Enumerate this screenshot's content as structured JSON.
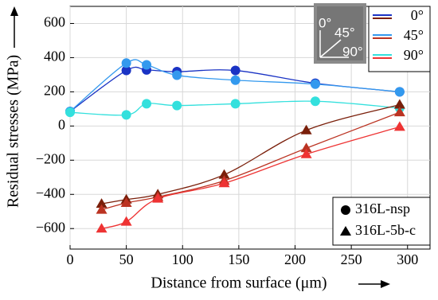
{
  "chart_data": {
    "type": "line",
    "x_label": "Distance from surface (μm)",
    "y_label": "Residual stresses (MPa)",
    "xlim": [
      0,
      320
    ],
    "ylim": [
      -720,
      700
    ],
    "xticks": [
      0,
      50,
      100,
      150,
      200,
      250,
      300
    ],
    "yticks": [
      {
        "value": -600,
        "label": "−600"
      },
      {
        "value": -400,
        "label": "−400"
      },
      {
        "value": -200,
        "label": "−200"
      },
      0,
      200,
      400,
      600
    ],
    "grid": true,
    "legend_angles": [
      "0°",
      "45°",
      "90°"
    ],
    "inset_labels": [
      "0°",
      "45°",
      "90°"
    ],
    "groups": [
      {
        "name": "316L-nsp",
        "marker": "circle",
        "series": [
          {
            "color": "#1a33c4",
            "x": [
              0,
              50,
              68,
              95,
              147,
              218,
              293
            ],
            "values": [
              85,
              325,
              328,
              318,
              325,
              250,
              200
            ]
          },
          {
            "color": "#3399ee",
            "x": [
              0,
              50,
              68,
              95,
              147,
              218,
              293
            ],
            "values": [
              85,
              368,
              358,
              297,
              268,
              245,
              200
            ]
          },
          {
            "color": "#33e0dd",
            "x": [
              0,
              50,
              68,
              95,
              147,
              218,
              293
            ],
            "values": [
              80,
              65,
              130,
              120,
              130,
              145,
              105
            ]
          }
        ]
      },
      {
        "name": "316L-5b-c",
        "marker": "triangle",
        "series": [
          {
            "color": "#7a1f0a",
            "x": [
              28,
              50,
              78,
              137,
              210,
              293
            ],
            "values": [
              -455,
              -430,
              -400,
              -285,
              -25,
              125
            ]
          },
          {
            "color": "#bb3322",
            "x": [
              28,
              50,
              78,
              137,
              210,
              293
            ],
            "values": [
              -490,
              -450,
              -415,
              -320,
              -130,
              80
            ]
          },
          {
            "color": "#ee3333",
            "x": [
              28,
              50,
              78,
              137,
              210,
              293
            ],
            "values": [
              -600,
              -560,
              -425,
              -335,
              -165,
              -5
            ]
          }
        ]
      }
    ]
  }
}
